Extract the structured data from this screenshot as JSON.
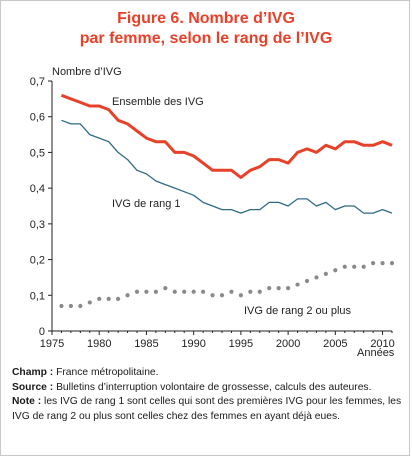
{
  "title_line1": "Figure 6. Nombre d’IVG",
  "title_line2": "par femme, selon le rang de l’IVG",
  "colors": {
    "title": "#e8412a",
    "ensemble": "#e8412a",
    "rang1": "#2f6b84",
    "rang2": "#8a8a8a"
  },
  "chart_data": {
    "type": "line",
    "title": "Nombre d’IVG par femme, selon le rang de l’IVG",
    "ylabel": "Nombre d’IVG",
    "xlabel": "Années",
    "xlim": [
      1975,
      2011
    ],
    "ylim": [
      0,
      0.7
    ],
    "xticks": [
      "1975",
      "1980",
      "1985",
      "1990",
      "1995",
      "2000",
      "2005",
      "2010"
    ],
    "yticks": [
      "0",
      "0,1",
      "0,2",
      "0,3",
      "0,4",
      "0,5",
      "0,6",
      "0,7"
    ],
    "grid": false,
    "legend": "inline labels",
    "x": [
      1976,
      1977,
      1978,
      1979,
      1980,
      1981,
      1982,
      1983,
      1984,
      1985,
      1986,
      1987,
      1988,
      1989,
      1990,
      1991,
      1992,
      1993,
      1994,
      1995,
      1996,
      1997,
      1998,
      1999,
      2000,
      2001,
      2002,
      2003,
      2004,
      2005,
      2006,
      2007,
      2008,
      2009,
      2010,
      2011
    ],
    "series": [
      {
        "name": "Ensemble des IVG",
        "style": "thick-line",
        "values": [
          0.66,
          0.65,
          0.64,
          0.63,
          0.63,
          0.62,
          0.59,
          0.58,
          0.56,
          0.54,
          0.53,
          0.53,
          0.5,
          0.5,
          0.49,
          0.47,
          0.45,
          0.45,
          0.45,
          0.43,
          0.45,
          0.46,
          0.48,
          0.48,
          0.47,
          0.5,
          0.51,
          0.5,
          0.52,
          0.51,
          0.53,
          0.53,
          0.52,
          0.52,
          0.53,
          0.52
        ]
      },
      {
        "name": "IVG de rang 1",
        "style": "thin-line",
        "values": [
          0.59,
          0.58,
          0.58,
          0.55,
          0.54,
          0.53,
          0.5,
          0.48,
          0.45,
          0.44,
          0.42,
          0.41,
          0.4,
          0.39,
          0.38,
          0.36,
          0.35,
          0.34,
          0.34,
          0.33,
          0.34,
          0.34,
          0.36,
          0.36,
          0.35,
          0.37,
          0.37,
          0.35,
          0.36,
          0.34,
          0.35,
          0.35,
          0.33,
          0.33,
          0.34,
          0.33
        ]
      },
      {
        "name": "IVG de rang 2 ou plus",
        "style": "dotted",
        "values": [
          0.07,
          0.07,
          0.07,
          0.08,
          0.09,
          0.09,
          0.09,
          0.1,
          0.11,
          0.11,
          0.11,
          0.12,
          0.11,
          0.11,
          0.11,
          0.11,
          0.1,
          0.1,
          0.11,
          0.1,
          0.11,
          0.11,
          0.12,
          0.12,
          0.12,
          0.13,
          0.14,
          0.15,
          0.16,
          0.17,
          0.18,
          0.18,
          0.18,
          0.19,
          0.19,
          0.19
        ]
      }
    ]
  },
  "notes": {
    "champ_label": "Champ :",
    "champ_text": " France métropolitaine.",
    "source_label": "Source :",
    "source_text": " Bulletins d’interruption volontaire de grossesse, calculs des auteures.",
    "note_label": "Note :",
    "note_text": " les IVG de rang 1 sont celles qui sont des premières IVG pour les femmes, les IVG de rang 2 ou plus sont celles chez des femmes en ayant déjà eues."
  }
}
